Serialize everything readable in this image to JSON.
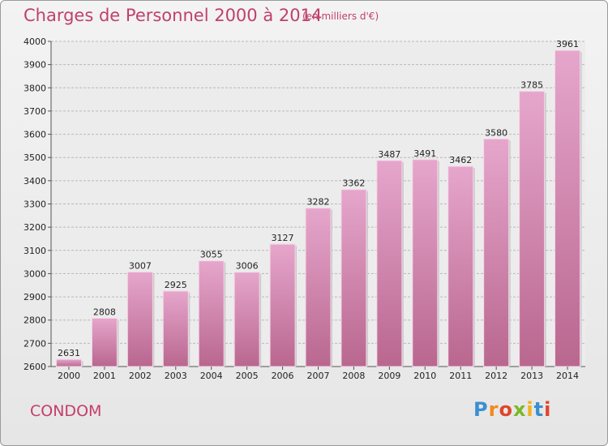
{
  "chart_data": {
    "type": "bar",
    "title": "Charges de Personnel 2000 à 2014",
    "subtitle": "(en milliers d'€)",
    "categories": [
      "2000",
      "2001",
      "2002",
      "2003",
      "2004",
      "2005",
      "2006",
      "2007",
      "2008",
      "2009",
      "2010",
      "2011",
      "2012",
      "2013",
      "2014"
    ],
    "values": [
      2631,
      2808,
      3007,
      2925,
      3055,
      3006,
      3127,
      3282,
      3362,
      3487,
      3491,
      3462,
      3580,
      3785,
      3961
    ],
    "ylim": [
      2600,
      4000
    ],
    "yticks": [
      2600,
      2700,
      2800,
      2900,
      3000,
      3100,
      3200,
      3300,
      3400,
      3500,
      3600,
      3700,
      3800,
      3900,
      4000
    ],
    "grid": true,
    "bar_color": "#d98bb5"
  },
  "footer": {
    "commune": "CONDOM",
    "logo_letters": [
      "P",
      "r",
      "o",
      "x",
      "i",
      "t",
      "i"
    ],
    "logo_colors": [
      "#3a8fd1",
      "#f08a1c",
      "#e0452b",
      "#7ab829",
      "#f2b21a",
      "#3a8fd1",
      "#e0452b"
    ]
  }
}
